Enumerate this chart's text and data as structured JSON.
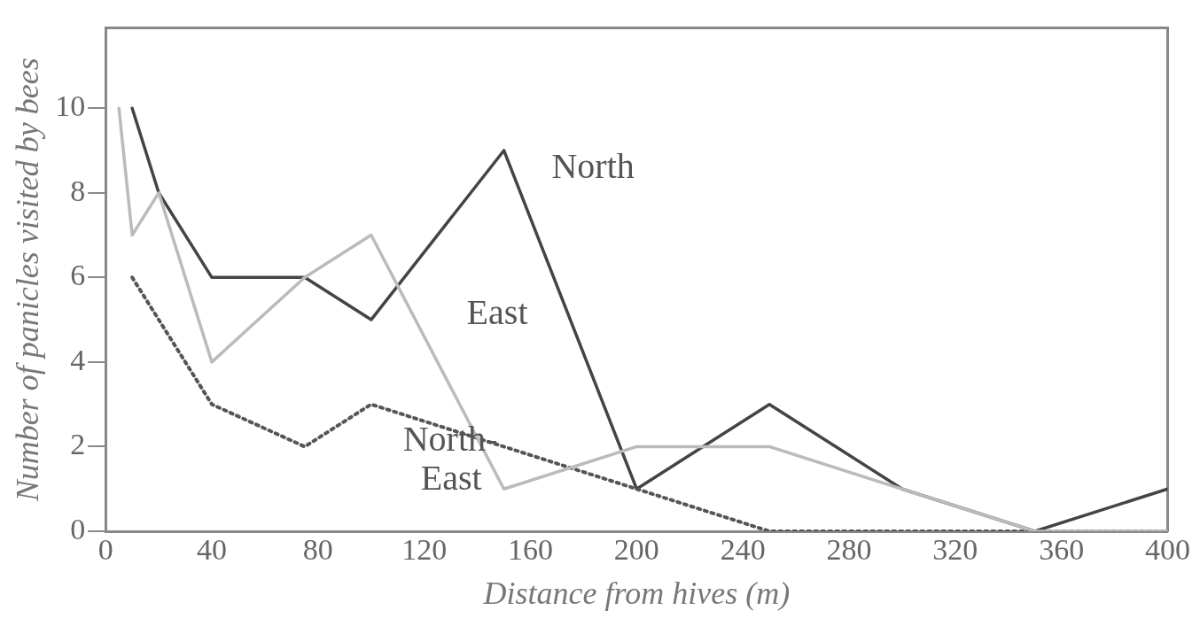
{
  "chart_data": {
    "type": "line",
    "xlabel": "Distance from hives (m)",
    "ylabel": "Number of panicles visited by bees",
    "xlim": [
      0,
      400
    ],
    "xticks": [
      0,
      40,
      80,
      120,
      160,
      200,
      240,
      280,
      320,
      360,
      400
    ],
    "ylim": [
      0,
      11.9
    ],
    "yticks": [
      0,
      2,
      4,
      6,
      8,
      10
    ],
    "grid": false,
    "legend": false,
    "marker": "none",
    "series": [
      {
        "name": "East",
        "color": "#bbbbbb",
        "line_style": "solid",
        "x": [
          5,
          10,
          20,
          40,
          75,
          100,
          150,
          200,
          250,
          300,
          350,
          400
        ],
        "values": [
          10,
          7,
          8,
          4,
          6,
          7,
          1,
          2,
          2,
          1,
          0,
          0
        ]
      },
      {
        "name": "North-East",
        "color": "#555555",
        "line_style": "dotted",
        "x": [
          10,
          40,
          75,
          100,
          200,
          250,
          300,
          350,
          400
        ],
        "values": [
          6,
          3,
          2,
          3,
          1,
          0,
          0,
          0,
          0
        ]
      },
      {
        "name": "North",
        "color": "#444444",
        "line_style": "solid",
        "x": [
          10,
          20,
          40,
          75,
          100,
          150,
          200,
          250,
          300,
          350,
          400
        ],
        "values": [
          10,
          8,
          6,
          6,
          5,
          9,
          1,
          3,
          1,
          0,
          1
        ]
      }
    ]
  }
}
